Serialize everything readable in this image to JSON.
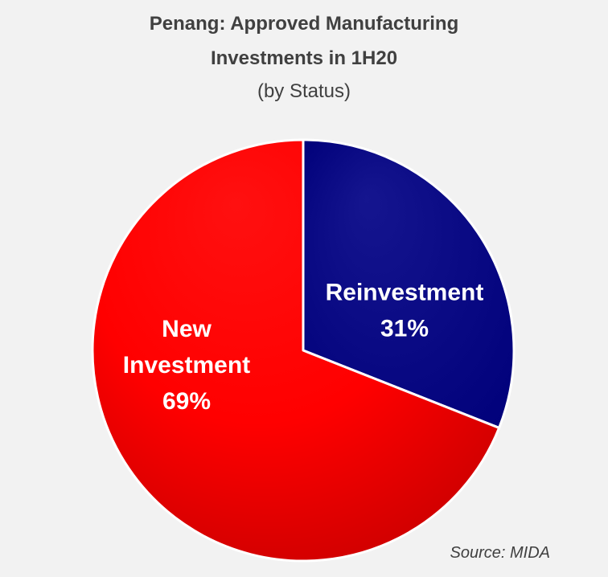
{
  "chart_data": {
    "type": "pie",
    "title_lines": [
      "Penang: Approved Manufacturing",
      "Investments in 1H20"
    ],
    "subtitle": "(by Status)",
    "slices": [
      {
        "label_lines": [
          "Reinvestment"
        ],
        "value": 31,
        "value_label": "31%",
        "color": "#0c0c8a",
        "label_color": "#ffffff"
      },
      {
        "label_lines": [
          "New",
          "Investment"
        ],
        "value": 69,
        "value_label": "69%",
        "color": "#ff0000",
        "label_color": "#ffffff"
      }
    ],
    "source": "Source: MIDA"
  }
}
